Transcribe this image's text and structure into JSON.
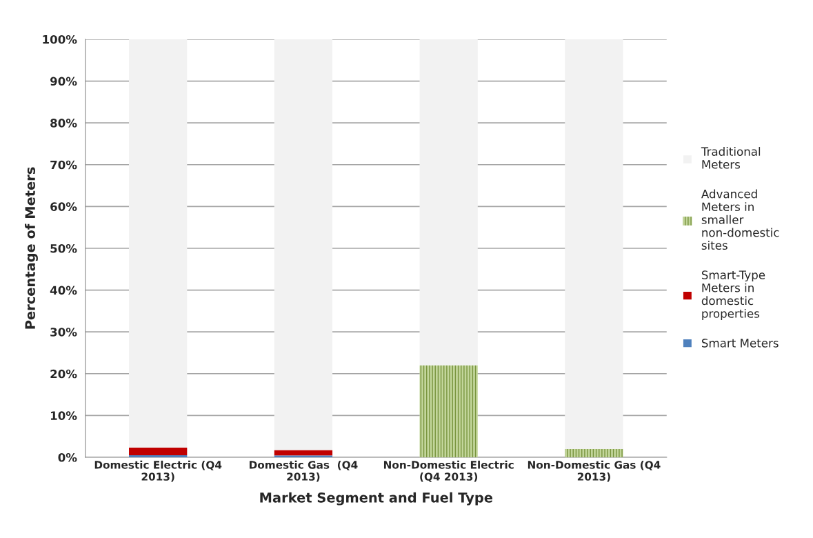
{
  "chart_data": {
    "type": "bar",
    "stacked": true,
    "xlabel": "Market Segment and Fuel Type",
    "ylabel": "Percentage of Meters",
    "categories": [
      "Domestic Electric (Q4 2013)",
      "Domestic Gas  (Q4 2013)",
      "Non-Domestic Electric (Q4 2013)",
      "Non-Domestic Gas (Q4 2013)"
    ],
    "series": [
      {
        "name": "Smart Meters",
        "color": "#4f81bd",
        "values": [
          0.5,
          0.4,
          null,
          null
        ]
      },
      {
        "name": "Smart-Type Meters in domestic properties",
        "color": "#c00000",
        "values": [
          1.8,
          1.3,
          null,
          null
        ]
      },
      {
        "name": "Advanced Meters in smaller non-domestic sites",
        "color": "#77933c",
        "values": [
          null,
          null,
          22,
          2
        ]
      },
      {
        "name": "Traditional Meters",
        "color": "#f2f2f2",
        "values": [
          97.7,
          98.3,
          78,
          98
        ]
      }
    ],
    "ylim": [
      0,
      100
    ],
    "yticks": [
      {
        "value": 0,
        "label": "0%"
      },
      {
        "value": 10,
        "label": "10%"
      },
      {
        "value": 20,
        "label": "20%"
      },
      {
        "value": 30,
        "label": "30%"
      },
      {
        "value": 40,
        "label": "40%"
      },
      {
        "value": 50,
        "label": "50%"
      },
      {
        "value": 60,
        "label": "60%"
      },
      {
        "value": 70,
        "label": "70%"
      },
      {
        "value": 80,
        "label": "80%"
      },
      {
        "value": 90,
        "label": "90%"
      },
      {
        "value": 100,
        "label": "100%"
      }
    ],
    "grid": "y",
    "legend": "right"
  }
}
